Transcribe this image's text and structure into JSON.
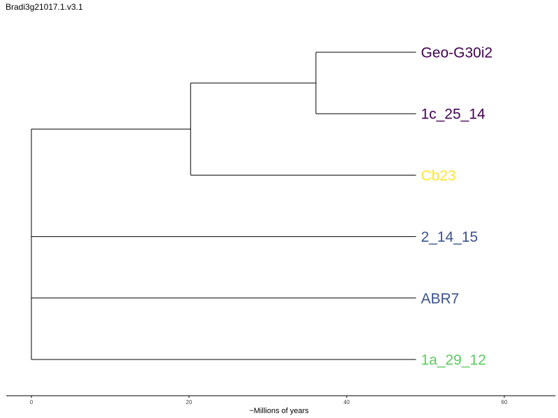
{
  "title": "Bradi3g21017.1.v3.1",
  "tree": {
    "tips": [
      {
        "label": "Geo-G30i2",
        "color": "#440154"
      },
      {
        "label": "1c_25_14",
        "color": "#440154"
      },
      {
        "label": "Cb23",
        "color": "#fde725"
      },
      {
        "label": "2_14_15",
        "color": "#3b528b"
      },
      {
        "label": "ABR7",
        "color": "#3b528b"
      },
      {
        "label": "1a_29_12",
        "color": "#5ec962"
      }
    ],
    "nodes": {
      "root": {
        "time": 0,
        "children": [
          "nA",
          "nD"
        ]
      },
      "nA": {
        "time": 0,
        "children": [
          "nB",
          "t5"
        ]
      },
      "nB": {
        "time": 20.2,
        "children": [
          "nC",
          "t2"
        ]
      },
      "nC": {
        "time": 36.1,
        "children": [
          "t0",
          "t1"
        ]
      },
      "nD": {
        "time": 0,
        "children": [
          "t3",
          "t4"
        ]
      }
    },
    "tip_time": 48.8
  },
  "axis": {
    "label": "~Millions of years",
    "ticks": [
      0,
      20,
      40,
      60
    ],
    "range": [
      -3.2,
      66.5
    ]
  }
}
